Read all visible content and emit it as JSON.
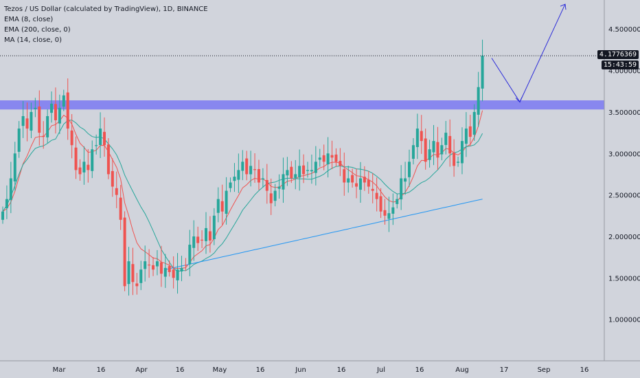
{
  "legend": {
    "title": "Tezos / US Dollar (calculated by TradingView), 1D, BINANCE",
    "ema8": "EMA (8, close)",
    "ema200": "EMA (200, close, 0)",
    "ma14": "MA (14, close, 0)"
  },
  "price_tags": {
    "last_price": "4.1776369",
    "countdown": "15:43:59"
  },
  "colors": {
    "background": "#d1d4dc",
    "up": "#26a69a",
    "down": "#ef5350",
    "ema8": "#ef5350",
    "ma14": "#26a69a",
    "ema200": "#2196f3",
    "zone": "#7b79f2",
    "projection": "#2b2bd9",
    "text": "#131722",
    "tag_bg": "#131722",
    "tag_text": "#ffffff"
  },
  "chart_data": {
    "type": "candlestick",
    "title": "Tezos / US Dollar (calculated by TradingView), 1D, BINANCE",
    "y_ticks": [
      "4.5000000",
      "4.0000000",
      "3.5000000",
      "3.0000000",
      "2.5000000",
      "2.0000000",
      "1.5000000",
      "1.0000000"
    ],
    "x_ticks": [
      "Mar",
      "16",
      "Apr",
      "16",
      "May",
      "16",
      "Jun",
      "16",
      "Jul",
      "16",
      "Aug",
      "17",
      "Sep",
      "16"
    ],
    "ylim": [
      0.5,
      4.85
    ],
    "support_zone": [
      3.53,
      3.64
    ],
    "last_price": 4.1776369,
    "projection_path": [
      {
        "x": "Aug 10",
        "y": 4.15
      },
      {
        "x": "Aug 22",
        "y": 3.62
      },
      {
        "x": "Sep 10",
        "y": 4.8
      }
    ],
    "closes": [
      2.3,
      2.45,
      2.7,
      3.0,
      3.3,
      3.45,
      3.3,
      3.5,
      3.55,
      3.25,
      3.2,
      3.45,
      3.6,
      3.4,
      3.55,
      3.7,
      3.3,
      3.1,
      2.8,
      2.75,
      2.9,
      2.8,
      3.05,
      3.1,
      3.3,
      3.1,
      2.75,
      2.6,
      2.5,
      2.2,
      1.4,
      1.7,
      1.45,
      1.4,
      1.6,
      1.7,
      1.65,
      1.6,
      1.7,
      1.55,
      1.62,
      1.57,
      1.5,
      1.6,
      1.62,
      1.65,
      1.9,
      2.0,
      1.92,
      1.95,
      2.1,
      1.95,
      2.25,
      2.45,
      2.3,
      2.55,
      2.65,
      2.72,
      2.8,
      2.9,
      2.75,
      2.85,
      2.8,
      2.65,
      2.7,
      2.55,
      2.4,
      2.55,
      2.6,
      2.75,
      2.8,
      2.7,
      2.75,
      2.85,
      2.75,
      2.8,
      2.8,
      2.9,
      2.95,
      2.9,
      3.0,
      2.95,
      2.9,
      2.85,
      2.65,
      2.7,
      2.65,
      2.6,
      2.7,
      2.65,
      2.6,
      2.55,
      2.45,
      2.3,
      2.25,
      2.28,
      2.35,
      2.45,
      2.7,
      2.7,
      2.9,
      3.1,
      3.3,
      3.15,
      2.9,
      3.05,
      3.15,
      2.95,
      3.1,
      3.25,
      3.0,
      2.85,
      2.9,
      3.15,
      3.3,
      3.2,
      3.5,
      3.8,
      4.18
    ],
    "series": [
      {
        "name": "EMA (8, close)"
      },
      {
        "name": "MA (14, close, 0)"
      },
      {
        "name": "EMA (200, close, 0)"
      }
    ]
  }
}
